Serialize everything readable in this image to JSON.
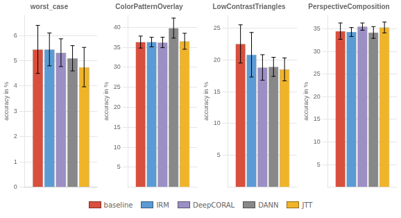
{
  "chart_data": [
    {
      "type": "bar",
      "title": "worst_case",
      "ylabel": "accuracy in %",
      "categories": [
        null
      ],
      "tick_labels": "y",
      "grid": true,
      "legend": "bottom",
      "ylim": [
        0,
        6.8
      ],
      "yticks": [
        0,
        1,
        2,
        3,
        4,
        5,
        6
      ],
      "series": [
        {
          "name": "baseline",
          "color": "#d94f3d",
          "values": [
            5.45
          ],
          "err": [
            0.95
          ]
        },
        {
          "name": "IRM",
          "color": "#5b9bd5",
          "values": [
            5.45
          ],
          "err": [
            0.65
          ]
        },
        {
          "name": "DeepCORAL",
          "color": "#9b8fc4",
          "values": [
            5.32
          ],
          "err": [
            0.55
          ]
        },
        {
          "name": "DANN",
          "color": "#888888",
          "values": [
            5.1
          ],
          "err": [
            0.5
          ]
        },
        {
          "name": "JTT",
          "color": "#f0b429",
          "values": [
            4.75
          ],
          "err": [
            0.78
          ]
        }
      ]
    },
    {
      "type": "bar",
      "title": "ColorPatternOverlay",
      "ylabel": "accuracy in %",
      "categories": [
        null
      ],
      "tick_labels": "y",
      "grid": true,
      "legend": "bottom",
      "ylim": [
        0,
        43
      ],
      "yticks": [
        5,
        10,
        15,
        20,
        25,
        30,
        35,
        40
      ],
      "series": [
        {
          "name": "baseline",
          "color": "#d94f3d",
          "values": [
            36.3
          ],
          "err": [
            1.5
          ]
        },
        {
          "name": "IRM",
          "color": "#5b9bd5",
          "values": [
            36.3
          ],
          "err": [
            1.2
          ]
        },
        {
          "name": "DeepCORAL",
          "color": "#9b8fc4",
          "values": [
            36.2
          ],
          "err": [
            1.3
          ]
        },
        {
          "name": "DANN",
          "color": "#888888",
          "values": [
            39.8
          ],
          "err": [
            2.5
          ]
        },
        {
          "name": "JTT",
          "color": "#f0b429",
          "values": [
            36.5
          ],
          "err": [
            2.0
          ]
        }
      ]
    },
    {
      "type": "bar",
      "title": "LowContrastTriangles",
      "ylabel": "accuracy in %",
      "categories": [
        null
      ],
      "tick_labels": "y",
      "grid": true,
      "legend": "bottom",
      "ylim": [
        0,
        27
      ],
      "yticks": [
        5,
        10,
        15,
        20,
        25
      ],
      "series": [
        {
          "name": "baseline",
          "color": "#d94f3d",
          "values": [
            22.5
          ],
          "err": [
            3.0
          ]
        },
        {
          "name": "IRM",
          "color": "#5b9bd5",
          "values": [
            20.8
          ],
          "err": [
            3.5
          ]
        },
        {
          "name": "DeepCORAL",
          "color": "#9b8fc4",
          "values": [
            18.8
          ],
          "err": [
            2.0
          ]
        },
        {
          "name": "DANN",
          "color": "#888888",
          "values": [
            18.9
          ],
          "err": [
            1.5
          ]
        },
        {
          "name": "JTT",
          "color": "#f0b429",
          "values": [
            18.5
          ],
          "err": [
            1.8
          ]
        }
      ]
    },
    {
      "type": "bar",
      "title": "PerspectiveComposition",
      "ylabel": "accuracy in %",
      "categories": [
        null
      ],
      "tick_labels": "y",
      "grid": true,
      "legend": "bottom",
      "ylim": [
        0,
        38
      ],
      "yticks": [
        5,
        10,
        15,
        20,
        25,
        30,
        35
      ],
      "series": [
        {
          "name": "baseline",
          "color": "#d94f3d",
          "values": [
            34.5
          ],
          "err": [
            1.8
          ]
        },
        {
          "name": "IRM",
          "color": "#5b9bd5",
          "values": [
            34.3
          ],
          "err": [
            1.0
          ]
        },
        {
          "name": "DeepCORAL",
          "color": "#9b8fc4",
          "values": [
            35.5
          ],
          "err": [
            0.8
          ]
        },
        {
          "name": "DANN",
          "color": "#888888",
          "values": [
            34.2
          ],
          "err": [
            1.3
          ]
        },
        {
          "name": "JTT",
          "color": "#f0b429",
          "values": [
            35.3
          ],
          "err": [
            1.2
          ]
        }
      ]
    }
  ]
}
